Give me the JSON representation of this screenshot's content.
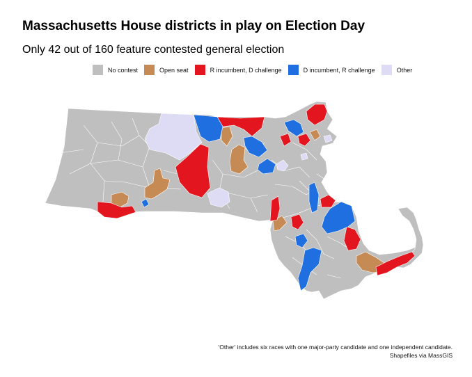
{
  "title": "Massachusetts House districts in play on Election Day",
  "subtitle": "Only 42 out of 160 feature contested general election",
  "legend": [
    {
      "label": "No contest",
      "color": "#bfbfbf"
    },
    {
      "label": "Open seat",
      "color": "#c68a55"
    },
    {
      "label": "R incumbent, D challenge",
      "color": "#e3161f"
    },
    {
      "label": "D incumbent, R challenge",
      "color": "#1f6fe0"
    },
    {
      "label": "Other",
      "color": "#dedcf5"
    }
  ],
  "colors": {
    "no_contest": "#bfbfbf",
    "open_seat": "#c68a55",
    "r_incumbent": "#e3161f",
    "d_incumbent": "#1f6fe0",
    "other": "#dedcf5",
    "border": "#ffffff"
  },
  "footnote": {
    "line1": "'Other' includes six races with one major-party candidate and one independent candidate.",
    "line2": "Shapefiles via MassGIS"
  }
}
